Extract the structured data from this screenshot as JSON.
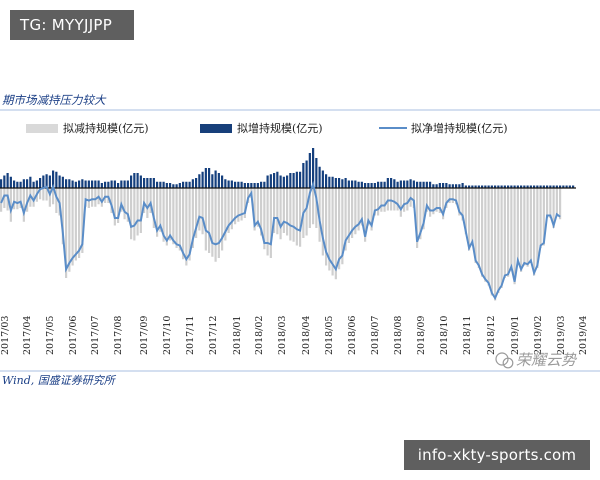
{
  "watermark_top": "TG: MYYJJPP",
  "watermark_bottom": "info-xkty-sports.com",
  "chart_data": {
    "type": "bar",
    "title": "期市场减持压力较大",
    "source": "Wind, 国盛证券研究所",
    "wechat_mark": "荣耀云势",
    "legend": [
      "拟减持规模(亿元)",
      "拟增持规模(亿元)",
      "拟净增持规模(亿元)"
    ],
    "colors": {
      "reduce": "#cfcfcf",
      "increase": "#143f7d",
      "net": "#5a8dc8"
    },
    "x_labels": [
      "2017/03",
      "2017/04",
      "2017/05",
      "2017/06",
      "2017/07",
      "2017/08",
      "2017/09",
      "2017/10",
      "2017/11",
      "2017/12",
      "2018/01",
      "2018/02",
      "2018/03",
      "2018/04",
      "2018/05",
      "2018/06",
      "2018/07",
      "2018/08",
      "2018/09",
      "2018/10",
      "2018/11",
      "2018/12",
      "2019/01",
      "2019/02",
      "2019/03",
      "2019/04"
    ],
    "series": [
      {
        "name": "拟减持规模(亿元)",
        "values": [
          -19,
          -16,
          -18,
          -27,
          -17,
          -17,
          -16,
          -27,
          -19,
          -15,
          -15,
          -11,
          -9,
          -10,
          -10,
          -15,
          -13,
          -20,
          -22,
          -45,
          -72,
          -67,
          -62,
          -58,
          -56,
          -52,
          -15,
          -16,
          -15,
          -15,
          -13,
          -15,
          -12,
          -12,
          -20,
          -30,
          -28,
          -19,
          -25,
          -27,
          -41,
          -42,
          -38,
          -36,
          -20,
          -24,
          -20,
          -32,
          -39,
          -35,
          -43,
          -46,
          -42,
          -45,
          -48,
          -50,
          -57,
          -62,
          -58,
          -48,
          -40,
          -34,
          -37,
          -50,
          -52,
          -55,
          -59,
          -56,
          -50,
          -42,
          -36,
          -33,
          -29,
          -27,
          -26,
          -24,
          -12,
          -8,
          -34,
          -31,
          -38,
          -49,
          -54,
          -56,
          -36,
          -37,
          -41,
          -36,
          -38,
          -42,
          -43,
          -46,
          -47,
          -40,
          -38,
          -32,
          -29,
          -32,
          -43,
          -54,
          -62,
          -66,
          -70,
          -73,
          -65,
          -61,
          -50,
          -44,
          -40,
          -37,
          -34,
          -30,
          -43,
          -30,
          -34,
          -22,
          -22,
          -19,
          -19,
          -18,
          -18,
          -18,
          -18,
          -23,
          -19,
          -18,
          -15,
          -16,
          -48,
          -41,
          -33,
          -19,
          -23,
          -21,
          -19,
          -20,
          -25,
          -16,
          -12,
          -12,
          -13,
          -22,
          -26,
          -37,
          -50,
          -45,
          -60,
          -64,
          -71,
          -75,
          -78,
          -86,
          -90,
          -84,
          -80,
          -72,
          -71,
          -65,
          -77,
          -60,
          -67,
          -62,
          -63,
          -60,
          -70,
          -64,
          -48,
          -46,
          -24,
          -24,
          -32,
          -23,
          -25
        ]
      },
      {
        "name": "拟增持规模(亿元)",
        "values": [
          7,
          10,
          12,
          9,
          6,
          5,
          5,
          7,
          7,
          9,
          5,
          6,
          8,
          10,
          11,
          10,
          14,
          13,
          10,
          9,
          7,
          7,
          6,
          5,
          6,
          7,
          6,
          6,
          6,
          6,
          6,
          4,
          5,
          5,
          6,
          6,
          4,
          6,
          6,
          6,
          10,
          12,
          12,
          10,
          8,
          8,
          8,
          8,
          5,
          5,
          5,
          4,
          4,
          3,
          3,
          4,
          5,
          5,
          5,
          7,
          8,
          11,
          13,
          16,
          16,
          11,
          14,
          12,
          10,
          7,
          6,
          6,
          5,
          5,
          5,
          4,
          4,
          4,
          4,
          4,
          5,
          5,
          10,
          11,
          12,
          13,
          10,
          9,
          10,
          12,
          12,
          13,
          13,
          20,
          22,
          28,
          32,
          24,
          17,
          14,
          11,
          9,
          9,
          8,
          8,
          7,
          8,
          6,
          6,
          6,
          5,
          5,
          4,
          4,
          4,
          4,
          5,
          5,
          5,
          8,
          8,
          7,
          5,
          6,
          6,
          6,
          7,
          6,
          5,
          5,
          5,
          5,
          5,
          3,
          3,
          4,
          4,
          4,
          3,
          3,
          3,
          3,
          4,
          2,
          2,
          2,
          2,
          2,
          2,
          2,
          2,
          2,
          2,
          2,
          2,
          2,
          2,
          2,
          2,
          2,
          2,
          2,
          2,
          2,
          2,
          2,
          2,
          2,
          2,
          2,
          2,
          2,
          2,
          2,
          2,
          2,
          2
        ]
      },
      {
        "name": "拟净增持规模(亿元)",
        "values": [
          -12,
          -6,
          -6,
          -18,
          -11,
          -12,
          -11,
          -20,
          -12,
          -6,
          -10,
          -5,
          -1,
          0,
          1,
          -5,
          1,
          -7,
          -12,
          -36,
          -65,
          -60,
          -56,
          -53,
          -50,
          -45,
          -9,
          -10,
          -9,
          -9,
          -7,
          -11,
          -7,
          -7,
          -14,
          -24,
          -24,
          -13,
          -19,
          -21,
          -31,
          -30,
          -26,
          -26,
          -12,
          -16,
          -12,
          -24,
          -34,
          -30,
          -38,
          -42,
          -38,
          -42,
          -45,
          -46,
          -52,
          -57,
          -53,
          -41,
          -32,
          -23,
          -24,
          -34,
          -36,
          -44,
          -45,
          -44,
          -40,
          -35,
          -30,
          -27,
          -24,
          -22,
          -21,
          -20,
          -8,
          -4,
          -30,
          -27,
          -33,
          -44,
          -44,
          -45,
          -24,
          -24,
          -31,
          -27,
          -28,
          -30,
          -31,
          -33,
          -34,
          -20,
          -16,
          -4,
          3,
          -8,
          -26,
          -40,
          -51,
          -57,
          -61,
          -65,
          -57,
          -54,
          -42,
          -38,
          -34,
          -31,
          -29,
          -25,
          -39,
          -26,
          -30,
          -18,
          -17,
          -14,
          -14,
          -10,
          -10,
          -11,
          -13,
          -17,
          -13,
          -12,
          -8,
          -10,
          -43,
          -36,
          -28,
          -14,
          -18,
          -18,
          -16,
          -16,
          -21,
          -12,
          -9,
          -9,
          -10,
          -19,
          -22,
          -35,
          -48,
          -43,
          -58,
          -62,
          -69,
          -73,
          -76,
          -84,
          -88,
          -82,
          -78,
          -70,
          -69,
          -63,
          -75,
          -58,
          -65,
          -60,
          -61,
          -58,
          -68,
          -62,
          -46,
          -44,
          -22,
          -22,
          -30,
          -21,
          -23
        ]
      }
    ],
    "series_type": {
      "拟减持规模(亿元)": "bar",
      "拟增持规模(亿元)": "bar",
      "拟净增持规模(亿元)": "line"
    }
  }
}
